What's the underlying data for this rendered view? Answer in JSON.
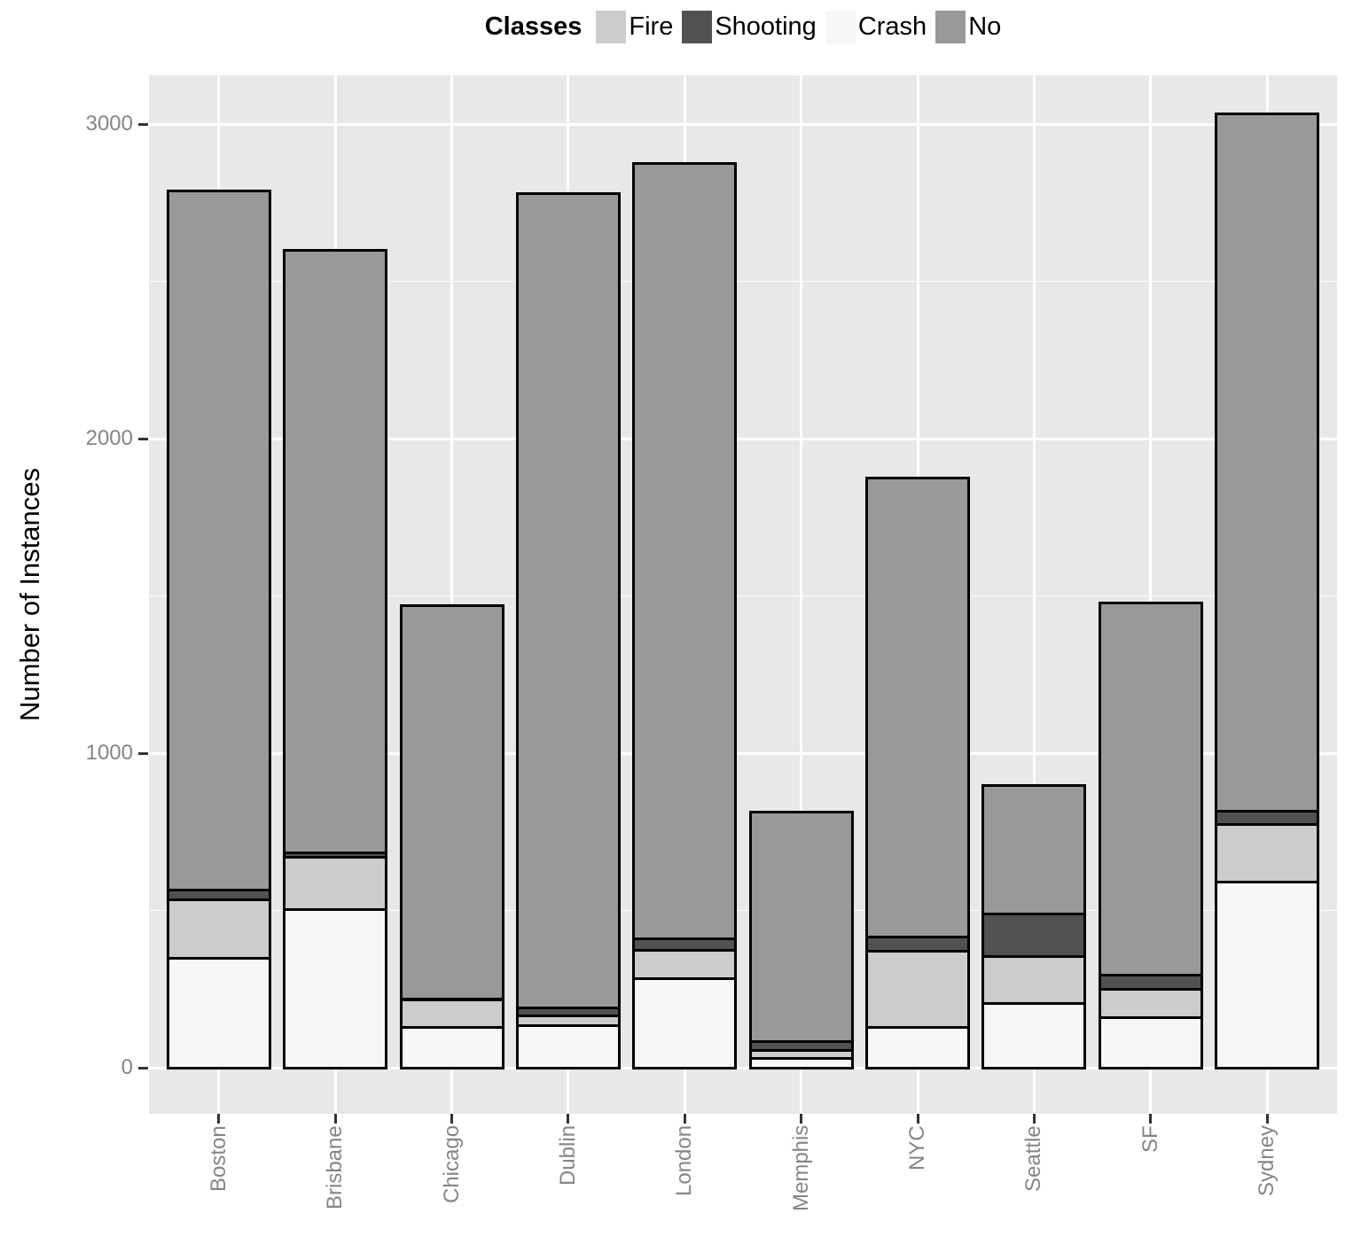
{
  "chart": {
    "legend_title": "Classes",
    "y_axis_title": "Number of Instances",
    "colors": {
      "fire": "#cccccc",
      "shooting": "#515151",
      "crash": "#f7f7f7",
      "no": "#999999",
      "panel_background": "#e8e8e8",
      "gridline": "#ffffff",
      "bar_border": "#000000",
      "axis_text": "#858585",
      "tick_mark": "#333333"
    }
  },
  "chart_data": {
    "type": "bar",
    "stacked": true,
    "title": "",
    "xlabel": "",
    "ylabel": "Number of Instances",
    "categories": [
      "Boston",
      "Brisbane",
      "Chicago",
      "Dublin",
      "London",
      "Memphis",
      "NYC",
      "Seattle",
      "SF",
      "Sydney"
    ],
    "series": [
      {
        "name": "Crash",
        "color_key": "crash",
        "values": [
          345,
          500,
          125,
          130,
          280,
          25,
          125,
          200,
          155,
          585
        ]
      },
      {
        "name": "Fire",
        "color_key": "fire",
        "values": [
          185,
          165,
          85,
          30,
          90,
          25,
          240,
          150,
          90,
          185
        ]
      },
      {
        "name": "Shooting",
        "color_key": "shooting",
        "values": [
          30,
          15,
          5,
          25,
          35,
          30,
          45,
          135,
          45,
          40
        ]
      },
      {
        "name": "No",
        "color_key": "no",
        "values": [
          2220,
          1910,
          1245,
          2585,
          2460,
          725,
          1455,
          405,
          1180,
          2215
        ]
      }
    ],
    "totals": [
      2780,
      2590,
      1460,
      2770,
      2865,
      805,
      1865,
      890,
      1470,
      3025
    ],
    "stack_order_bottom_to_top": [
      "Crash",
      "Fire",
      "Shooting",
      "No"
    ],
    "legend_order": [
      "Fire",
      "Shooting",
      "Crash",
      "No"
    ],
    "yticks": [
      0,
      1000,
      2000,
      3000
    ],
    "ytick_labels": [
      "0",
      "1000",
      "2000",
      "3000"
    ],
    "yticks_minor": [
      500,
      1500,
      2500
    ],
    "ylim": [
      0,
      3300
    ],
    "grid": true,
    "legend_position": "top"
  }
}
